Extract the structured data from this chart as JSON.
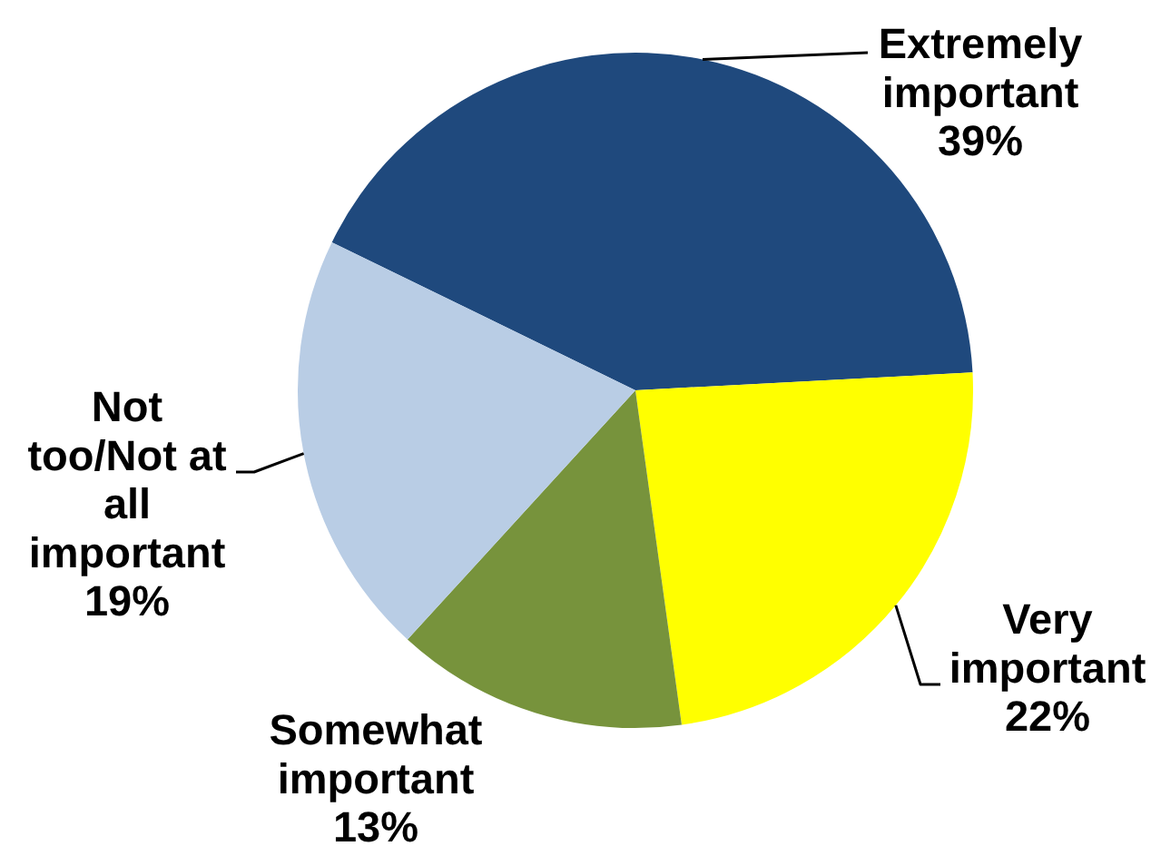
{
  "chart_data": {
    "type": "pie",
    "categories": [
      "Extremely important",
      "Very important",
      "Somewhat important",
      "Not too/Not at all important"
    ],
    "values": [
      39,
      22,
      13,
      19
    ],
    "colors": [
      "#1f497d",
      "#ffff00",
      "#77933c",
      "#b9cde5"
    ],
    "value_labels": [
      "39%",
      "22%",
      "13%",
      "19%"
    ],
    "legend": false
  }
}
